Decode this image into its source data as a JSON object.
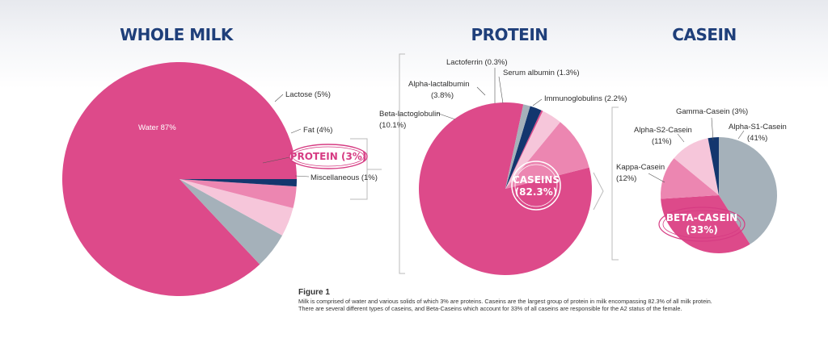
{
  "colors": {
    "pink": "#dd4a8a",
    "mid_pink": "#ec86b1",
    "light_pink": "#f6c6da",
    "gray": "#a5b1ba",
    "navy": "#13366e",
    "title": "#1f3f7a"
  },
  "chart_data": [
    {
      "type": "pie",
      "title": "WHOLE MILK",
      "slices": [
        {
          "label": "Water 87%",
          "value": 87,
          "color": "#dd4a8a"
        },
        {
          "label": "Lactose (5%)",
          "value": 5,
          "color": "#a5b1ba"
        },
        {
          "label": "Fat (4%)",
          "value": 4,
          "color": "#f6c6da"
        },
        {
          "label": "PROTEIN (3%)",
          "value": 3,
          "color": "#ec86b1"
        },
        {
          "label": "Miscellaneous (1%)",
          "value": 1,
          "color": "#13366e"
        }
      ]
    },
    {
      "type": "pie",
      "title": "PROTEIN",
      "slices": [
        {
          "label": "CASEINS (82.3%)",
          "value": 82.3,
          "color": "#dd4a8a"
        },
        {
          "label": "Beta-lactoglobulin (10.1%)",
          "value": 10.1,
          "color": "#ec86b1"
        },
        {
          "label": "Alpha-lactalbumin (3.8%)",
          "value": 3.8,
          "color": "#f6c6da"
        },
        {
          "label": "Lactoferrin (0.3%)",
          "value": 0.3,
          "color": "#dd4a8a"
        },
        {
          "label": "Immunoglobulins (2.2%)",
          "value": 2.2,
          "color": "#13366e"
        },
        {
          "label": "Serum albumin (1.3%)",
          "value": 1.3,
          "color": "#a5b1ba"
        }
      ]
    },
    {
      "type": "pie",
      "title": "CASEIN",
      "slices": [
        {
          "label": "Alpha-S1-Casein (41%)",
          "value": 41,
          "color": "#a5b1ba"
        },
        {
          "label": "BETA-CASEIN (33%)",
          "value": 33,
          "color": "#dd4a8a"
        },
        {
          "label": "Kappa-Casein (12%)",
          "value": 12,
          "color": "#ec86b1"
        },
        {
          "label": "Alpha-S2-Casein (11%)",
          "value": 11,
          "color": "#f6c6da"
        },
        {
          "label": "Gamma-Casein (3%)",
          "value": 3,
          "color": "#13366e"
        }
      ]
    }
  ],
  "labels": {
    "milk": {
      "water": "Water 87%",
      "lactose": "Lactose (5%)",
      "fat": "Fat (4%)",
      "protein": "PROTEIN (3%)",
      "misc": "Miscellaneous (1%)"
    },
    "protein": {
      "lactoferrin": "Lactoferrin (0.3%)",
      "alpha_1": "Alpha-lactalbumin",
      "alpha_2": "(3.8%)",
      "serum": "Serum albumin (1.3%)",
      "beta_1": "Beta-lactoglobulin",
      "beta_2": "(10.1%)",
      "immuno": "Immunoglobulins (2.2%)",
      "caseins_1": "CASEINS",
      "caseins_2": "(82.3%)"
    },
    "casein": {
      "gamma": "Gamma-Casein (3%)",
      "as2_1": "Alpha-S2-Casein",
      "as2_2": "(11%)",
      "as1_1": "Alpha-S1-Casein",
      "as1_2": "(41%)",
      "kappa_1": "Kappa-Casein",
      "kappa_2": "(12%)",
      "beta_1": "BETA-CASEIN",
      "beta_2": "(33%)"
    }
  },
  "caption": {
    "title": "Figure 1",
    "line1": "Milk is comprised of water and various solids of which 3% are proteins. Caseins are the largest group of protein in milk encompassing 82.3% of all milk protein.",
    "line2": "There are several different types of caseins, and Beta-Caseins which account for 33% of all caseins are responsible for the A2 status of the female."
  }
}
